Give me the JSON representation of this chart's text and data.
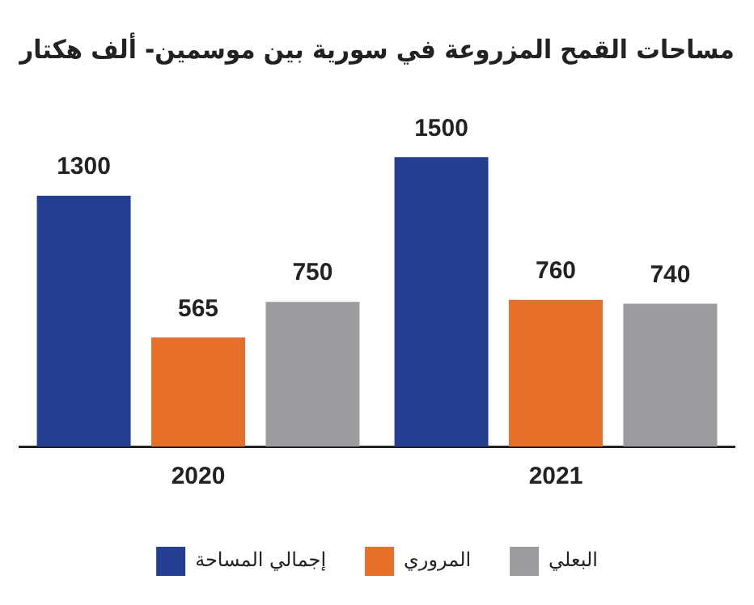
{
  "chart_data": {
    "type": "bar",
    "title": "مساحات القمح المزروعة في سورية بين موسمين- ألف هكتار",
    "categories": [
      "2020",
      "2021"
    ],
    "series": [
      {
        "name": "إجمالي المساحة",
        "color": "#243f92",
        "values": [
          1300,
          1500
        ]
      },
      {
        "name": "المروري",
        "color": "#e6702a",
        "values": [
          565,
          760
        ]
      },
      {
        "name": "البعلي",
        "color": "#9c9c9f",
        "values": [
          750,
          740
        ]
      }
    ],
    "data_labels": true,
    "grid": false,
    "legend": "bottom"
  }
}
